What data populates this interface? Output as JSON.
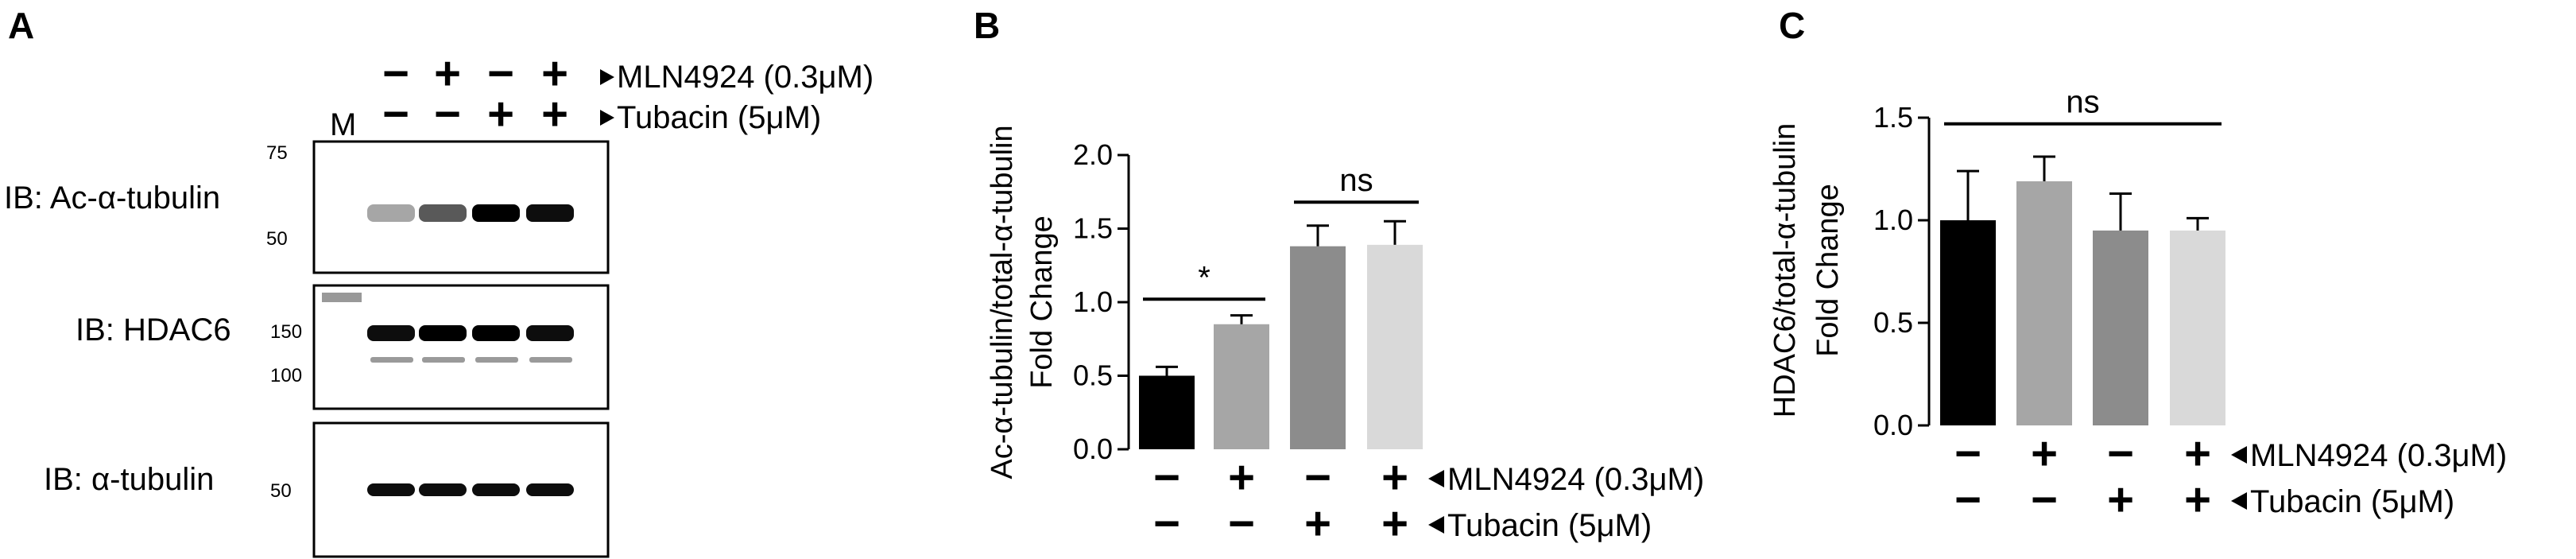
{
  "panels": {
    "a": "A",
    "b": "B",
    "c": "C"
  },
  "blot": {
    "marker_lane": "M",
    "treatments": {
      "mln": {
        "label": "MLN4924 (0.3μM)",
        "signs": [
          "−",
          "+",
          "−",
          "+"
        ]
      },
      "tub": {
        "label": "Tubacin (5μM)",
        "signs": [
          "−",
          "−",
          "+",
          "+"
        ]
      }
    },
    "rows": [
      {
        "label": "IB: Ac-α-tubulin",
        "mw_top": "75",
        "mw_bottom": "50",
        "band_intensity": [
          0.35,
          0.65,
          1.0,
          0.95
        ]
      },
      {
        "label": "IB: HDAC6",
        "mw_top": "150",
        "mw_bottom": "100",
        "band_intensity": [
          0.95,
          1.0,
          1.0,
          0.95
        ]
      },
      {
        "label": "IB: α-tubulin",
        "mw_top": "50",
        "mw_bottom": "",
        "band_intensity": [
          0.95,
          0.95,
          0.95,
          0.95
        ]
      }
    ]
  },
  "chart_data": [
    {
      "type": "bar",
      "panel": "B",
      "title": "",
      "ylabel_line1": "Ac-α-tubulin/total-α-tubulin",
      "ylabel_line2": "Fold Change",
      "ylim": [
        0,
        2.0
      ],
      "yticks": [
        "0.0",
        "0.5",
        "1.0",
        "1.5",
        "2.0"
      ],
      "categories": [
        "−/−",
        "+/−",
        "−/+",
        "+/+"
      ],
      "values": [
        0.5,
        0.85,
        1.38,
        1.39
      ],
      "errors": [
        0.06,
        0.06,
        0.14,
        0.16
      ],
      "colors": [
        "#000000",
        "#a6a6a6",
        "#8c8c8c",
        "#d9d9d9"
      ],
      "treatment_signs": {
        "mln": [
          "−",
          "+",
          "−",
          "+"
        ],
        "tub": [
          "−",
          "−",
          "+",
          "+"
        ]
      },
      "treatment_labels": {
        "mln": "MLN4924 (0.3μM)",
        "tub": "Tubacin (5μM)"
      },
      "significance": [
        {
          "from": 0,
          "to": 1,
          "label": "*",
          "y": 1.02
        },
        {
          "from": 2,
          "to": 3,
          "label": "ns",
          "y": 1.68
        }
      ]
    },
    {
      "type": "bar",
      "panel": "C",
      "title": "",
      "ylabel_line1": "HDAC6/total-α-tubulin",
      "ylabel_line2": "Fold Change",
      "ylim": [
        0,
        1.5
      ],
      "yticks": [
        "0.0",
        "0.5",
        "1.0",
        "1.5"
      ],
      "categories": [
        "−/−",
        "+/−",
        "−/+",
        "+/+"
      ],
      "values": [
        1.0,
        1.19,
        0.95,
        0.95
      ],
      "errors": [
        0.24,
        0.12,
        0.18,
        0.06
      ],
      "colors": [
        "#000000",
        "#a6a6a6",
        "#8c8c8c",
        "#d9d9d9"
      ],
      "treatment_signs": {
        "mln": [
          "−",
          "+",
          "−",
          "+"
        ],
        "tub": [
          "−",
          "−",
          "+",
          "+"
        ]
      },
      "treatment_labels": {
        "mln": "MLN4924 (0.3μM)",
        "tub": "Tubacin (5μM)"
      },
      "significance": [
        {
          "from": 0,
          "to": 3,
          "label": "ns",
          "y": 1.47
        }
      ]
    }
  ]
}
